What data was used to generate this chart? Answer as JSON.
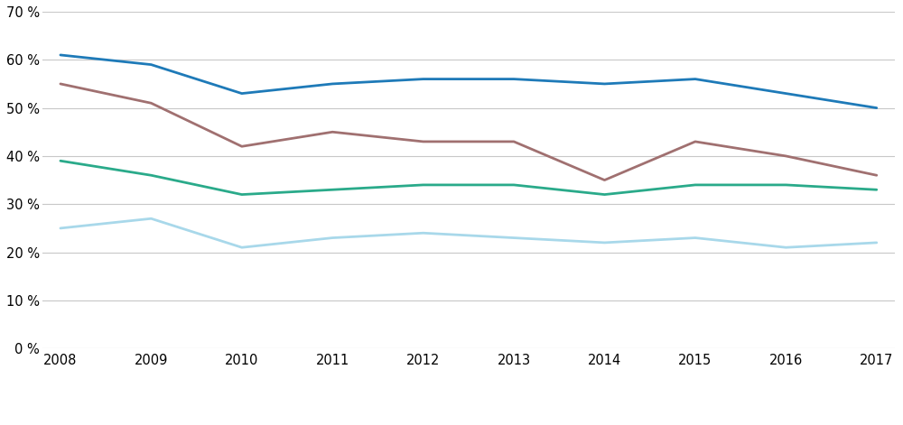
{
  "years": [
    2008,
    2009,
    2010,
    2011,
    2012,
    2013,
    2014,
    2015,
    2016,
    2017
  ],
  "series": {
    "Grunnskole": [
      25,
      27,
      21,
      23,
      24,
      23,
      22,
      23,
      21,
      22
    ],
    "Videregående": [
      39,
      36,
      32,
      33,
      34,
      34,
      32,
      34,
      34,
      33
    ],
    "Fagskole": [
      55,
      51,
      42,
      45,
      43,
      43,
      35,
      43,
      40,
      36
    ],
    "Universitet og høyskole": [
      61,
      59,
      53,
      55,
      56,
      56,
      55,
      56,
      53,
      50
    ]
  },
  "colors": {
    "Grunnskole": "#a8d8ea",
    "Videregående": "#2aaa8a",
    "Fagskole": "#a07070",
    "Universitet og høyskole": "#1e7ab8"
  },
  "ylim": [
    0,
    70
  ],
  "yticks": [
    0,
    10,
    20,
    30,
    40,
    50,
    60,
    70
  ],
  "background_color": "#ffffff",
  "grid_color": "#c8c8c8",
  "linewidth": 2.0,
  "legend_fontsize": 10,
  "tick_fontsize": 10.5
}
